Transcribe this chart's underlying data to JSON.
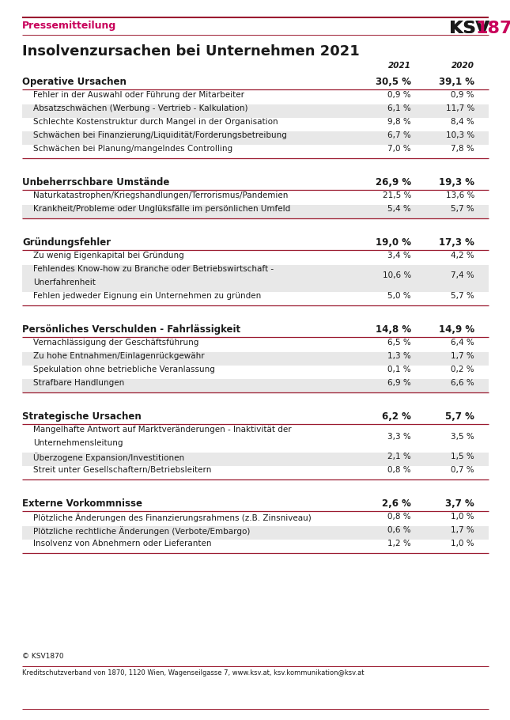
{
  "title": "Insolvenzursachen bei Unternehmen 2021",
  "header_left": "Pressemitteilung",
  "col2021": "2021",
  "col2020": "2020",
  "footer": "Kreditschutzverband von 1870, 1120 Wien, Wagenseilgasse 7, www.ksv.at, ksv.kommunikation@ksv.at",
  "copyright": "© KSV1870",
  "sections": [
    {
      "category": "Operative Ursachen",
      "val2021": "30,5 %",
      "val2020": "39,1 %",
      "rows": [
        {
          "label": "Fehler in der Auswahl oder Führung der Mitarbeiter",
          "val2021": "0,9 %",
          "val2020": "0,9 %",
          "shade": false
        },
        {
          "label": "Absatzschwächen (Werbung - Vertrieb - Kalkulation)",
          "val2021": "6,1 %",
          "val2020": "11,7 %",
          "shade": true
        },
        {
          "label": "Schlechte Kostenstruktur durch Mangel in der Organisation",
          "val2021": "9,8 %",
          "val2020": "8,4 %",
          "shade": false
        },
        {
          "label": "Schwächen bei Finanzierung/Liquidität/Forderungsbetreibung",
          "val2021": "6,7 %",
          "val2020": "10,3 %",
          "shade": true
        },
        {
          "label": "Schwächen bei Planung/mangelndes Controlling",
          "val2021": "7,0 %",
          "val2020": "7,8 %",
          "shade": false
        }
      ]
    },
    {
      "category": "Unbeherrschbare Umstände",
      "val2021": "26,9 %",
      "val2020": "19,3 %",
      "rows": [
        {
          "label": "Naturkatastrophen/Kriegshandlungen/Terrorismus/Pandemien",
          "val2021": "21,5 %",
          "val2020": "13,6 %",
          "shade": false
        },
        {
          "label": "Krankheit/Probleme oder Unglüksfälle im persönlichen Umfeld",
          "val2021": "5,4 %",
          "val2020": "5,7 %",
          "shade": true
        }
      ]
    },
    {
      "category": "Gründungsfehler",
      "val2021": "19,0 %",
      "val2020": "17,3 %",
      "rows": [
        {
          "label": "Zu wenig Eigenkapital bei Gründung",
          "val2021": "3,4 %",
          "val2020": "4,2 %",
          "shade": false
        },
        {
          "label": "Fehlendes Know-how zu Branche oder Betriebswirtschaft -\nUnerfahrenheit",
          "val2021": "10,6 %",
          "val2020": "7,4 %",
          "shade": true
        },
        {
          "label": "Fehlen jedweder Eignung ein Unternehmen zu gründen",
          "val2021": "5,0 %",
          "val2020": "5,7 %",
          "shade": false
        }
      ]
    },
    {
      "category": "Persönliches Verschulden - Fahrlässigkeit",
      "val2021": "14,8 %",
      "val2020": "14,9 %",
      "rows": [
        {
          "label": "Vernachlässigung der Geschäftsführung",
          "val2021": "6,5 %",
          "val2020": "6,4 %",
          "shade": false
        },
        {
          "label": "Zu hohe Entnahmen/Einlagenrückgewähr",
          "val2021": "1,3 %",
          "val2020": "1,7 %",
          "shade": true
        },
        {
          "label": "Spekulation ohne betriebliche Veranlassung",
          "val2021": "0,1 %",
          "val2020": "0,2 %",
          "shade": false
        },
        {
          "label": "Strafbare Handlungen",
          "val2021": "6,9 %",
          "val2020": "6,6 %",
          "shade": true
        }
      ]
    },
    {
      "category": "Strategische Ursachen",
      "val2021": "6,2 %",
      "val2020": "5,7 %",
      "rows": [
        {
          "label": "Mangelhafte Antwort auf Marktveränderungen - Inaktivität der\nUnternehmensleitung",
          "val2021": "3,3 %",
          "val2020": "3,5 %",
          "shade": false
        },
        {
          "label": "Überzogene Expansion/Investitionen",
          "val2021": "2,1 %",
          "val2020": "1,5 %",
          "shade": true
        },
        {
          "label": "Streit unter Gesellschaftern/Betriebsleitern",
          "val2021": "0,8 %",
          "val2020": "0,7 %",
          "shade": false
        }
      ]
    },
    {
      "category": "Externe Vorkommnisse",
      "val2021": "2,6 %",
      "val2020": "3,7 %",
      "rows": [
        {
          "label": "Plötzliche Änderungen des Finanzierungsrahmens (z.B. Zinsniveau)",
          "val2021": "0,8 %",
          "val2020": "1,0 %",
          "shade": false
        },
        {
          "label": "Plötzliche rechtliche Änderungen (Verbote/Embargo)",
          "val2021": "0,6 %",
          "val2020": "1,7 %",
          "shade": true
        },
        {
          "label": "Insolvenz von Abnehmern oder Lieferanten",
          "val2021": "1,2 %",
          "val2020": "1,0 %",
          "shade": false
        }
      ]
    }
  ],
  "colors": {
    "pink": "#C8005A",
    "dark_red": "#9B1B30",
    "black": "#1a1a1a",
    "shade_bg": "#E8E8E8",
    "white": "#FFFFFF",
    "line_color": "#9B1B30"
  }
}
